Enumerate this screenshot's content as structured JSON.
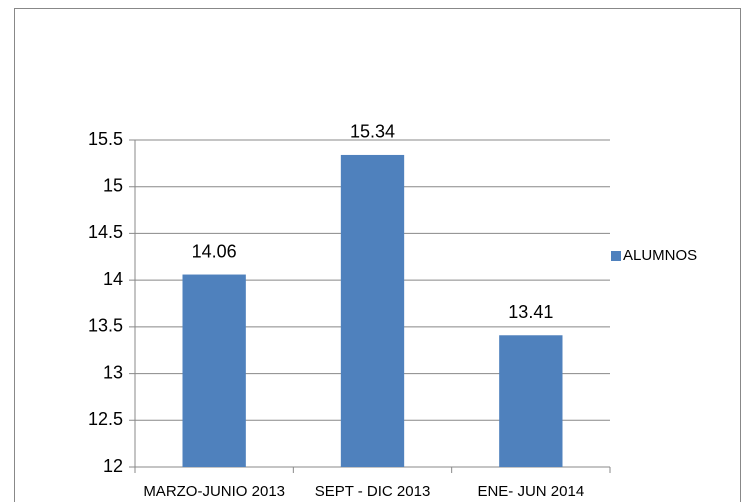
{
  "chart_data": {
    "type": "bar",
    "categories": [
      "MARZO-JUNIO 2013",
      "SEPT - DIC 2013",
      "ENE- JUN 2014"
    ],
    "series": [
      {
        "name": "ALUMNOS",
        "color": "#4f81bd",
        "values": [
          14.06,
          15.34,
          13.41
        ]
      }
    ],
    "ylim": [
      12,
      15.5
    ],
    "yticks": [
      12,
      12.5,
      13,
      13.5,
      14,
      14.5,
      15,
      15.5
    ],
    "grid": true,
    "legend": "right",
    "data_labels": true
  }
}
